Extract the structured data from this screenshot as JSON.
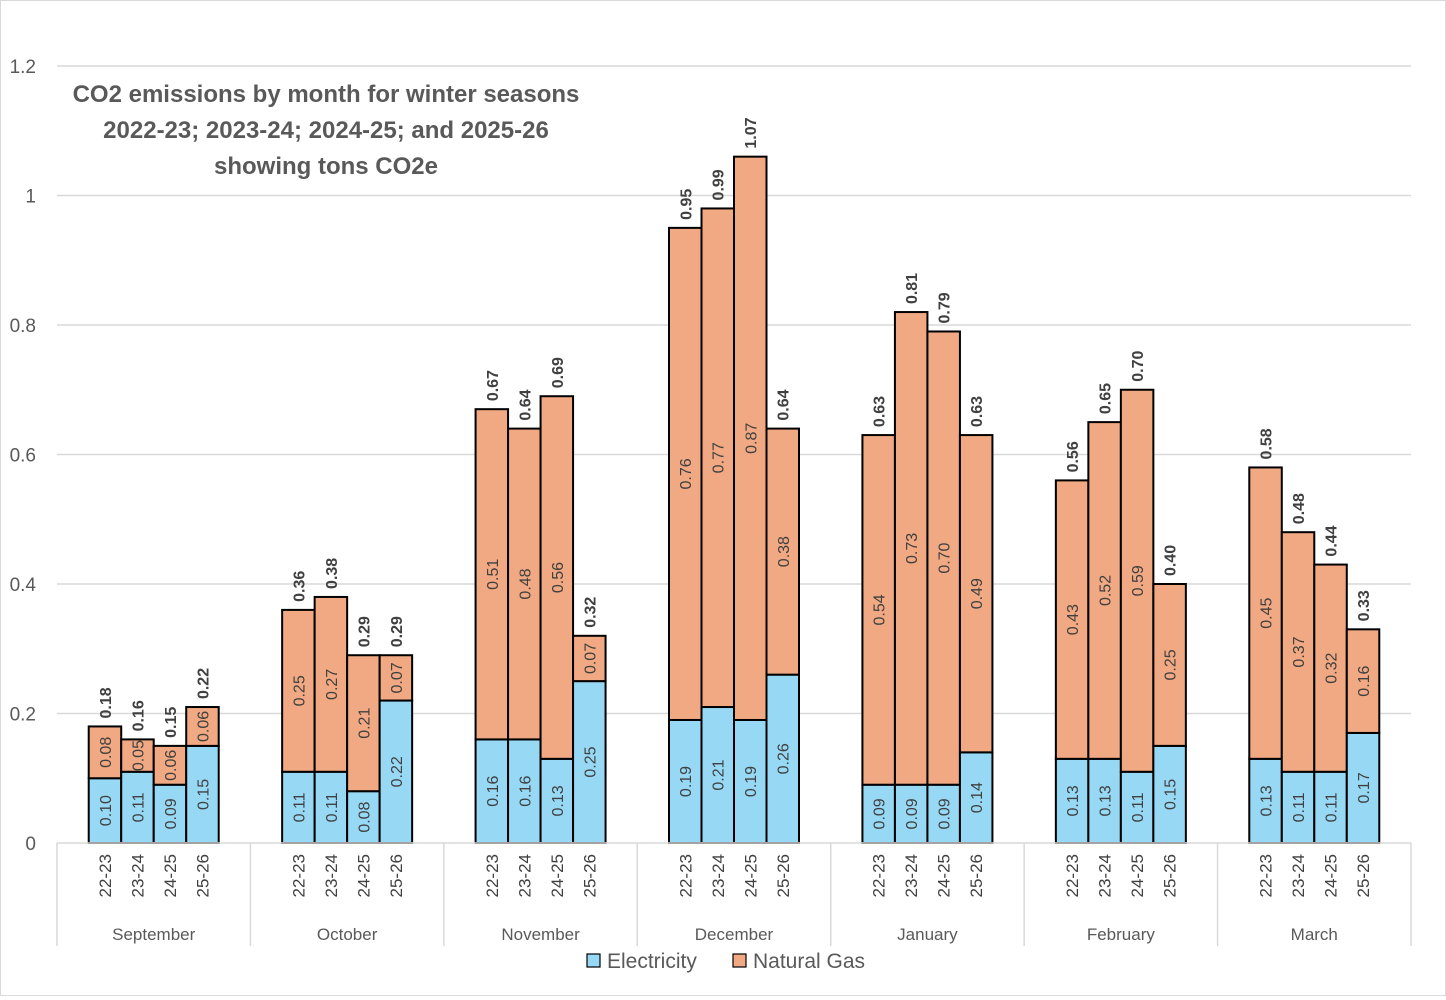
{
  "chart_data": {
    "type": "bar",
    "stacked": true,
    "title_lines": [
      "CO2 emissions by month for winter seasons",
      "2022-23; 2023-24; 2024-25; and 2025-26",
      "showing tons CO2e"
    ],
    "ylim": [
      0,
      1.2
    ],
    "yticks": [
      "0",
      "0.2",
      "0.4",
      "0.6",
      "0.8",
      "1",
      "1.2"
    ],
    "ytick_values": [
      0,
      0.2,
      0.4,
      0.6,
      0.8,
      1.0,
      1.2
    ],
    "grid": true,
    "legend_position": "bottom",
    "colors": {
      "Electricity": "#97d9f5",
      "Natural Gas": "#f0a982"
    },
    "seasons": [
      "22-23",
      "23-24",
      "24-25",
      "25-26"
    ],
    "groups": [
      {
        "month": "September",
        "electricity": [
          "0.10",
          "0.11",
          "0.09",
          "0.15"
        ],
        "gas": [
          "0.08",
          "0.05",
          "0.06",
          "0.06"
        ],
        "totals": [
          "0.18",
          "0.16",
          "0.15",
          "0.22"
        ]
      },
      {
        "month": "October",
        "electricity": [
          "0.11",
          "0.11",
          "0.08",
          "0.22"
        ],
        "gas": [
          "0.25",
          "0.27",
          "0.21",
          "0.07"
        ],
        "totals": [
          "0.36",
          "0.38",
          "0.29",
          "0.29"
        ]
      },
      {
        "month": "November",
        "electricity": [
          "0.16",
          "0.16",
          "0.13",
          "0.25"
        ],
        "gas": [
          "0.51",
          "0.48",
          "0.56",
          "0.07"
        ],
        "totals": [
          "0.67",
          "0.64",
          "0.69",
          "0.32"
        ]
      },
      {
        "month": "December",
        "electricity": [
          "0.19",
          "0.21",
          "0.19",
          "0.26"
        ],
        "gas": [
          "0.76",
          "0.77",
          "0.87",
          "0.38"
        ],
        "totals": [
          "0.95",
          "0.99",
          "1.07",
          "0.64"
        ]
      },
      {
        "month": "January",
        "electricity": [
          "0.09",
          "0.09",
          "0.09",
          "0.14"
        ],
        "gas": [
          "0.54",
          "0.73",
          "0.70",
          "0.49"
        ],
        "totals": [
          "0.63",
          "0.81",
          "0.79",
          "0.63"
        ]
      },
      {
        "month": "February",
        "electricity": [
          "0.13",
          "0.13",
          "0.11",
          "0.15"
        ],
        "gas": [
          "0.43",
          "0.52",
          "0.59",
          "0.25"
        ],
        "totals": [
          "0.56",
          "0.65",
          "0.70",
          "0.40"
        ]
      },
      {
        "month": "March",
        "electricity": [
          "0.13",
          "0.11",
          "0.11",
          "0.17"
        ],
        "gas": [
          "0.45",
          "0.37",
          "0.32",
          "0.16"
        ],
        "totals": [
          "0.58",
          "0.48",
          "0.44",
          "0.33"
        ]
      }
    ],
    "legend": [
      "Electricity",
      "Natural Gas"
    ]
  }
}
